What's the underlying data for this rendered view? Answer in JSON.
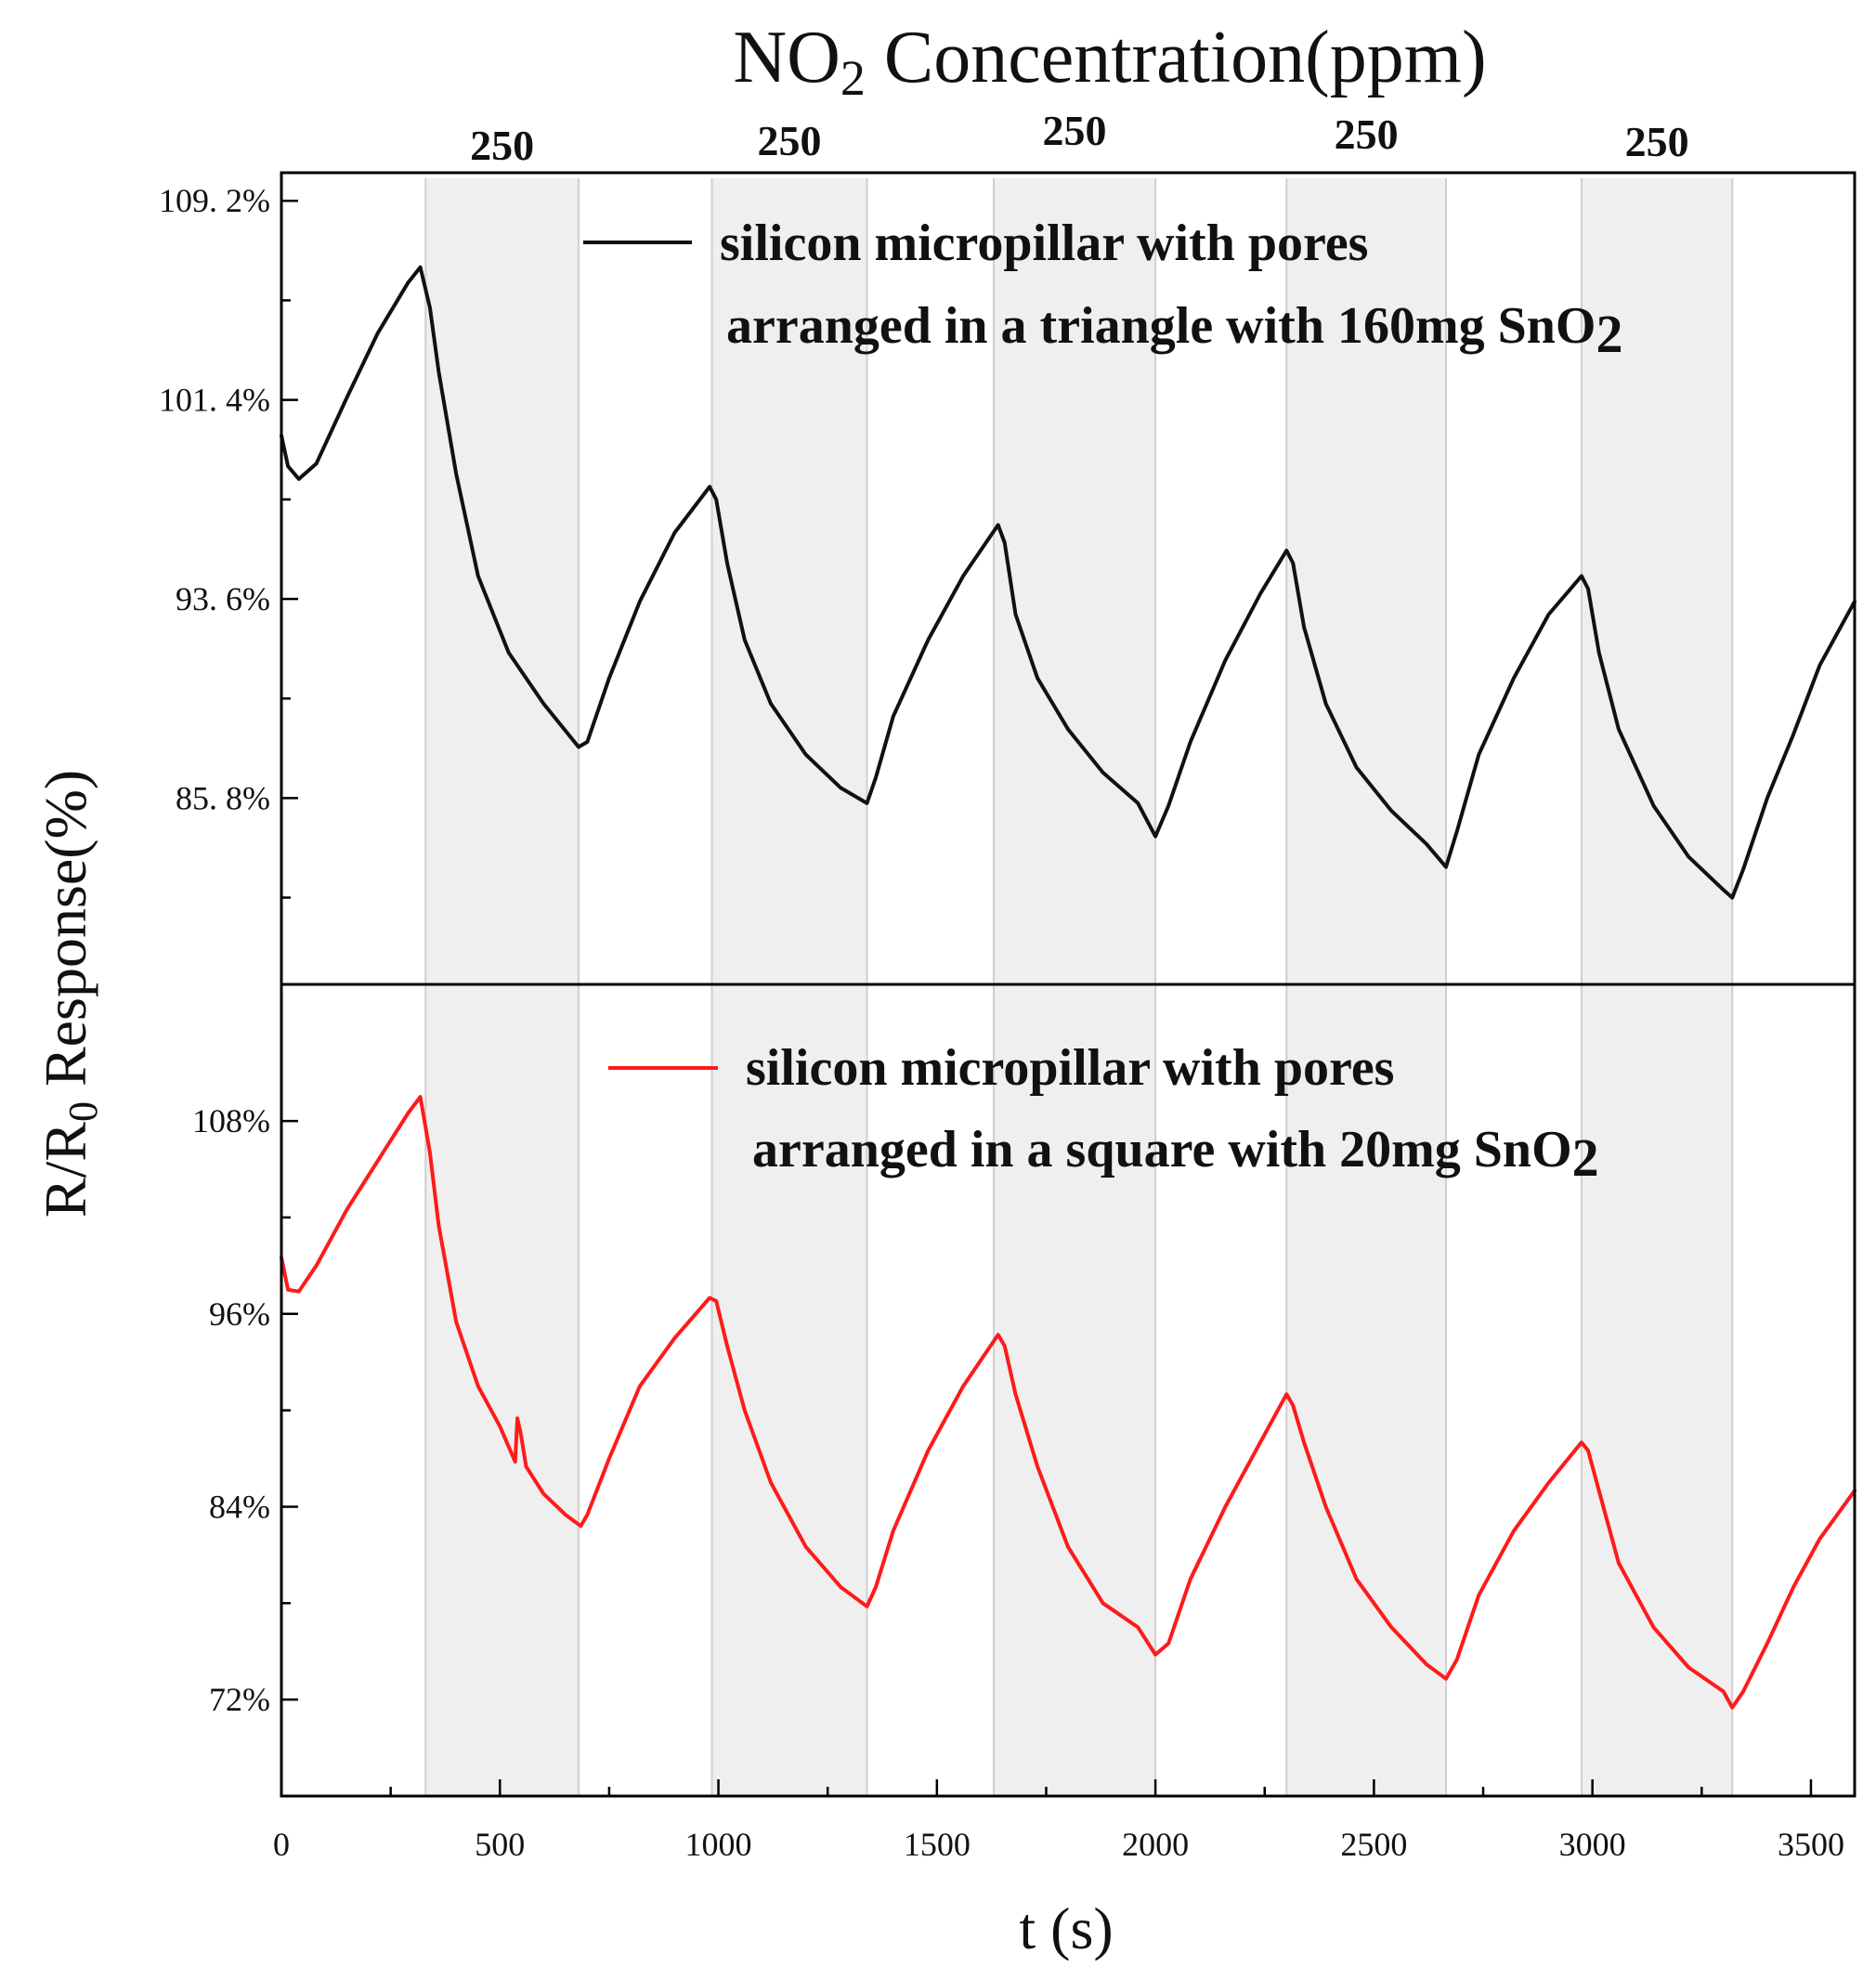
{
  "chart_data": {
    "type": "line",
    "top_title": {
      "prefix": "NO",
      "sub": "2",
      "suffix": " Concentration(ppm)"
    },
    "concentration_labels": [
      "250",
      "250",
      "250",
      "250",
      "250"
    ],
    "exposure_windows_s": [
      [
        330,
        680
      ],
      [
        985,
        1340
      ],
      [
        1630,
        2000
      ],
      [
        2300,
        2665
      ],
      [
        2975,
        3320
      ]
    ],
    "xlabel": "t (s)",
    "ylabel": {
      "prefix": "R/R",
      "sub": "0",
      "suffix": " Response(%)"
    },
    "xlim": [
      0,
      3600
    ],
    "x_ticks": [
      0,
      500,
      1000,
      1500,
      2000,
      2500,
      3000,
      3500
    ],
    "x_tick_labels": [
      "0",
      "500",
      "1000",
      "1500",
      "2000",
      "2500",
      "3000",
      "3500"
    ],
    "panels": [
      {
        "id": "top",
        "series_name": "silicon micropillar with pores arranged in a triangle with 160mg SnO2",
        "legend_line1": "silicon micropillar with pores",
        "legend_line2_prefix": "arranged in a triangle with 160mg SnO",
        "legend_line2_sub": "2",
        "color": "#111111",
        "ylim": [
          78.5,
          110.3
        ],
        "y_ticks": [
          109.2,
          101.4,
          93.6,
          85.8
        ],
        "y_tick_labels": [
          "109. 2%",
          "101. 4%",
          "93. 6%",
          "85. 8%"
        ],
        "x": [
          0,
          15,
          40,
          80,
          150,
          220,
          290,
          318,
          340,
          360,
          400,
          450,
          520,
          600,
          680,
          700,
          750,
          820,
          900,
          980,
          995,
          1020,
          1060,
          1120,
          1200,
          1280,
          1340,
          1360,
          1400,
          1480,
          1560,
          1640,
          1655,
          1680,
          1730,
          1800,
          1880,
          1960,
          2000,
          2030,
          2080,
          2160,
          2240,
          2300,
          2315,
          2340,
          2390,
          2460,
          2540,
          2620,
          2665,
          2690,
          2740,
          2820,
          2900,
          2975,
          2990,
          3015,
          3060,
          3140,
          3220,
          3300,
          3320,
          3345,
          3400,
          3460,
          3520,
          3600
        ],
        "values": [
          100.0,
          98.8,
          98.3,
          98.9,
          101.5,
          104.0,
          106.0,
          106.6,
          105.0,
          102.5,
          98.5,
          94.5,
          91.5,
          89.5,
          87.8,
          88.0,
          90.5,
          93.5,
          96.2,
          98.0,
          97.5,
          95.0,
          92.0,
          89.5,
          87.5,
          86.2,
          85.6,
          86.6,
          89.0,
          92.0,
          94.5,
          96.5,
          95.8,
          93.0,
          90.5,
          88.5,
          86.8,
          85.6,
          84.3,
          85.5,
          88.0,
          91.2,
          93.8,
          95.5,
          95.0,
          92.5,
          89.5,
          87.0,
          85.3,
          84.0,
          83.1,
          84.5,
          87.5,
          90.5,
          93.0,
          94.5,
          94.0,
          91.5,
          88.5,
          85.5,
          83.5,
          82.2,
          81.9,
          83.0,
          85.8,
          88.3,
          91.0,
          93.5
        ]
      },
      {
        "id": "bottom",
        "series_name": "silicon micropillar with pores arranged in a square with 20mg SnO2",
        "legend_line1": "silicon micropillar with pores",
        "legend_line2_prefix": "arranged in a square with 20mg SnO",
        "legend_line2_sub": "2",
        "color": "#ff1a1a",
        "ylim": [
          66.0,
          116.5
        ],
        "y_ticks": [
          108,
          96,
          84,
          72
        ],
        "y_tick_labels": [
          "108%",
          "96%",
          "84%",
          "72%"
        ],
        "x": [
          0,
          15,
          40,
          80,
          150,
          220,
          290,
          318,
          340,
          360,
          400,
          450,
          500,
          535,
          540,
          548,
          560,
          600,
          650,
          685,
          700,
          750,
          820,
          900,
          980,
          995,
          1020,
          1060,
          1120,
          1200,
          1280,
          1340,
          1360,
          1400,
          1480,
          1560,
          1640,
          1655,
          1680,
          1730,
          1800,
          1880,
          1960,
          2000,
          2030,
          2080,
          2160,
          2240,
          2300,
          2315,
          2340,
          2390,
          2460,
          2540,
          2620,
          2665,
          2690,
          2740,
          2820,
          2900,
          2975,
          2990,
          3015,
          3060,
          3140,
          3220,
          3300,
          3320,
          3345,
          3400,
          3460,
          3520,
          3600
        ],
        "values": [
          99.5,
          97.5,
          97.4,
          99.0,
          102.5,
          105.5,
          108.5,
          109.5,
          106.0,
          101.5,
          95.5,
          91.5,
          89.0,
          86.8,
          89.5,
          88.5,
          86.5,
          84.8,
          83.5,
          82.8,
          83.5,
          87.0,
          91.5,
          94.5,
          97.0,
          96.8,
          94.0,
          90.0,
          85.5,
          81.5,
          79.0,
          77.8,
          79.0,
          82.5,
          87.5,
          91.5,
          94.7,
          94.0,
          91.0,
          86.5,
          81.5,
          78.0,
          76.5,
          74.8,
          75.5,
          79.5,
          84.0,
          88.0,
          91.0,
          90.3,
          88.0,
          84.0,
          79.5,
          76.5,
          74.2,
          73.3,
          74.5,
          78.5,
          82.5,
          85.5,
          88.0,
          87.5,
          85.0,
          80.5,
          76.5,
          74.0,
          72.5,
          71.5,
          72.5,
          75.5,
          79.0,
          82.0,
          85.0
        ]
      }
    ]
  }
}
